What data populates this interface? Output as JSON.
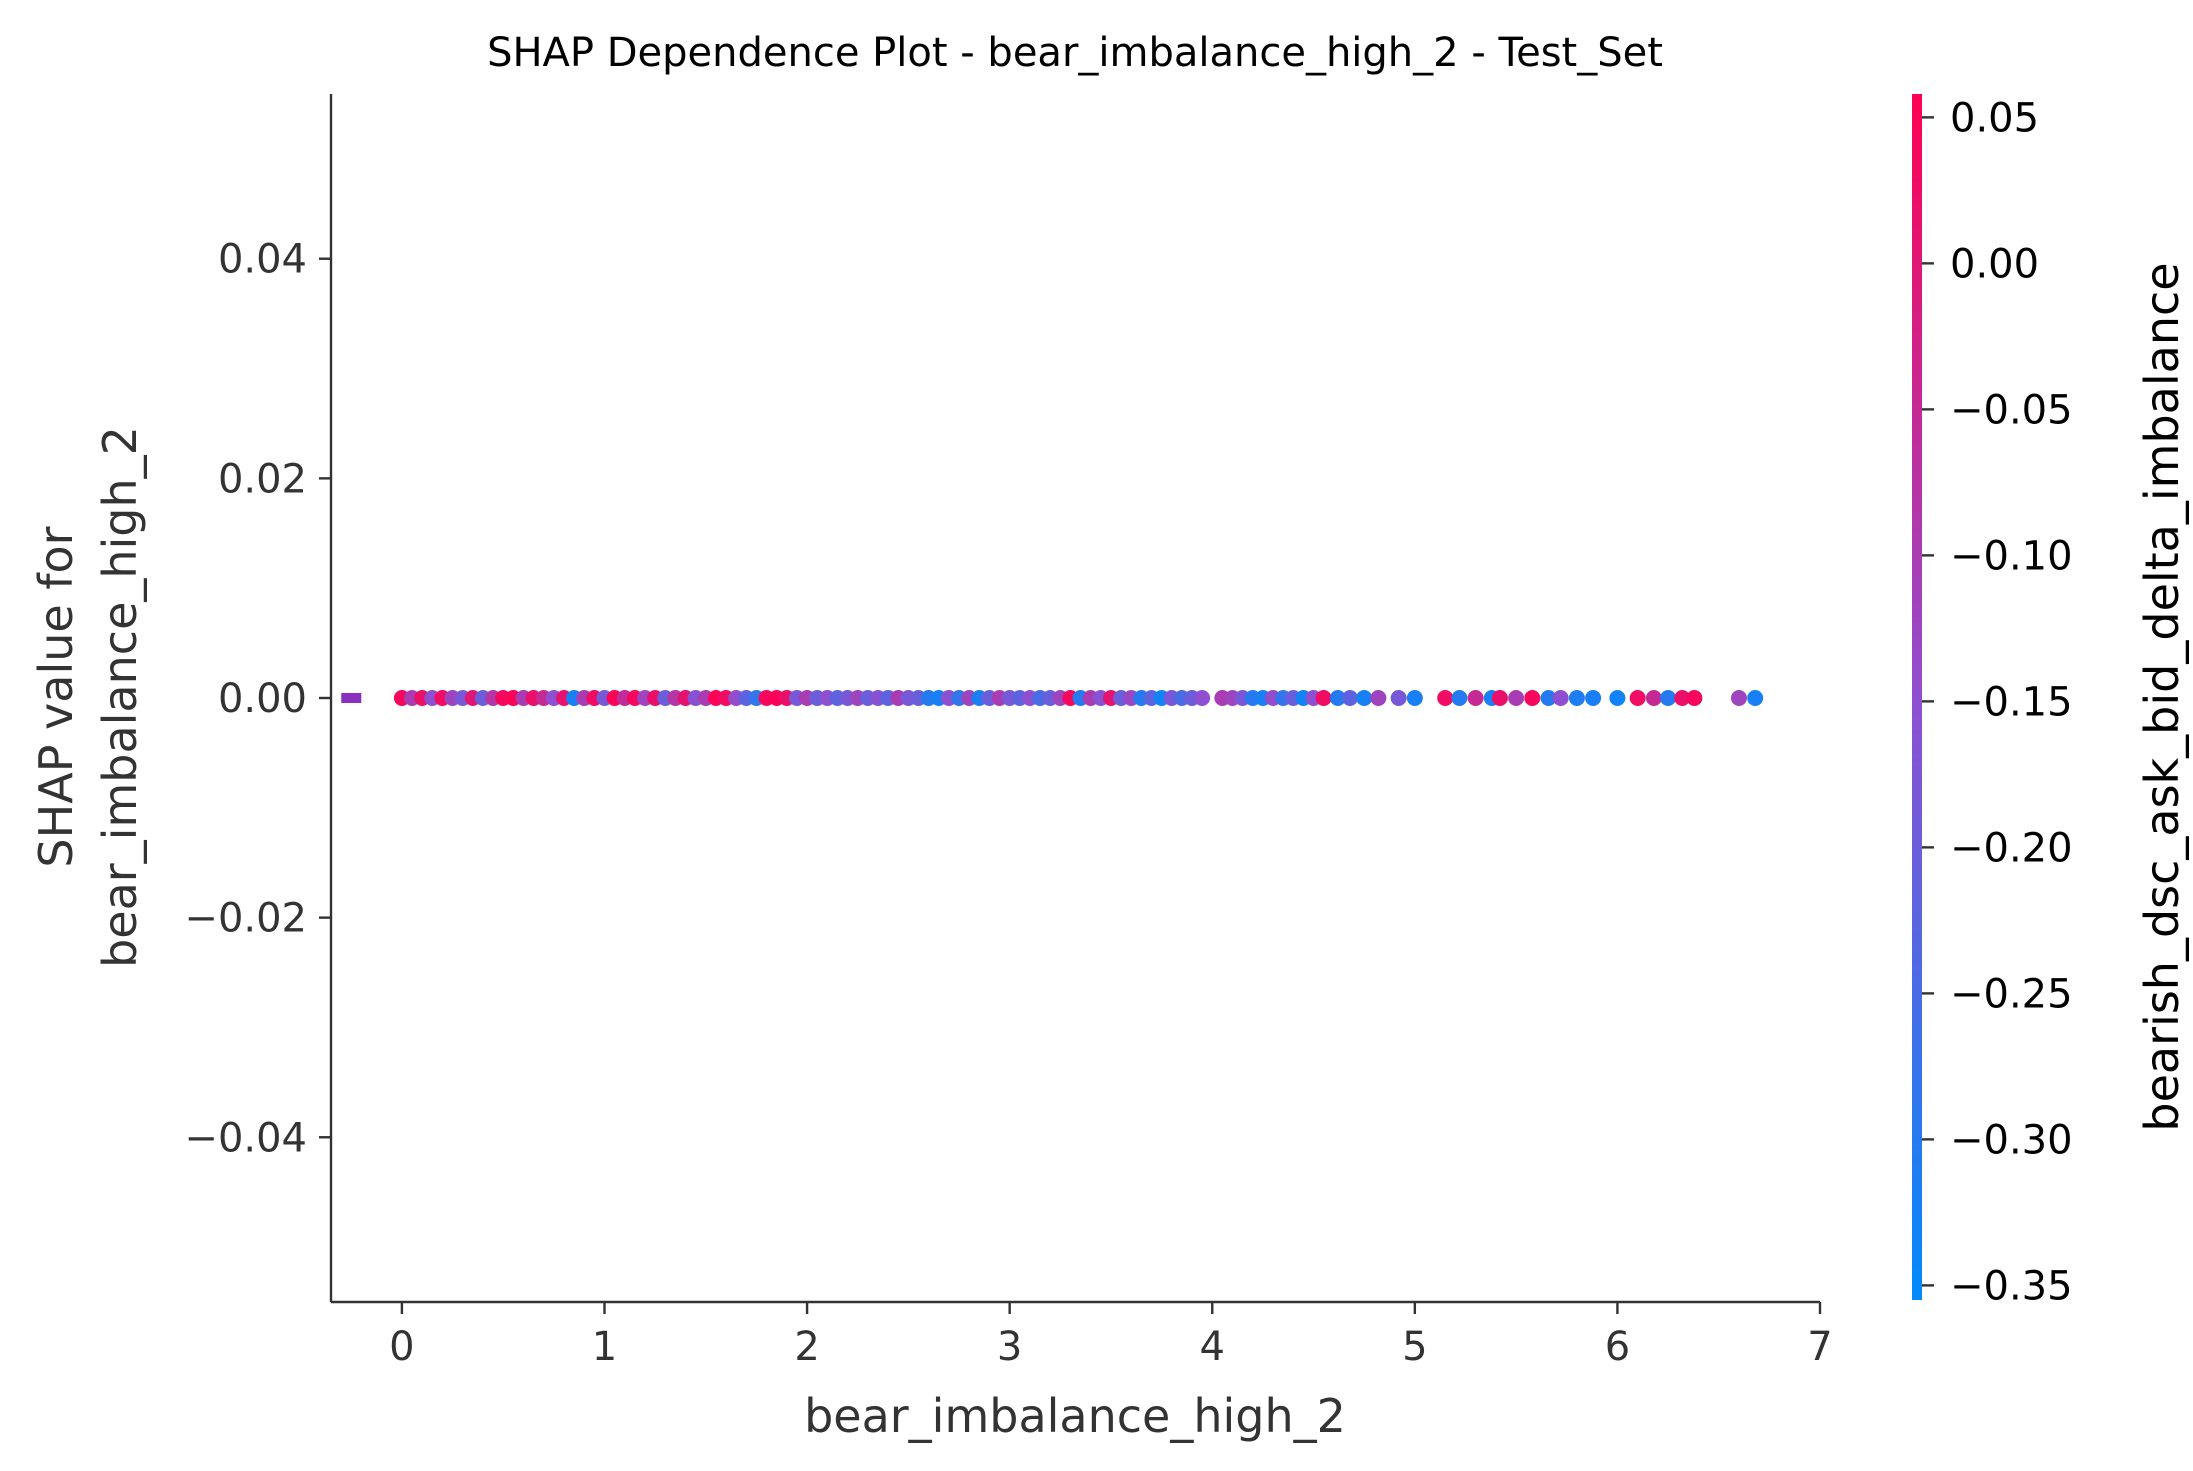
{
  "chart_data": {
    "type": "scatter",
    "title": "SHAP Dependence Plot - bear_imbalance_high_2 - Test_Set",
    "xlabel": "bear_imbalance_high_2",
    "ylabel_lines": [
      "SHAP value for",
      "bear_imbalance_high_2"
    ],
    "xlim": [
      -0.35,
      7.0
    ],
    "ylim": [
      -0.055,
      0.055
    ],
    "xticks": [
      0,
      1,
      2,
      3,
      4,
      5,
      6,
      7
    ],
    "xtick_labels": [
      "0",
      "1",
      "2",
      "3",
      "4",
      "5",
      "6",
      "7"
    ],
    "yticks": [
      0.04,
      0.02,
      0.0,
      -0.02,
      -0.04
    ],
    "ytick_labels": [
      "0.04",
      "0.02",
      "0.00",
      "−0.02",
      "−0.04"
    ],
    "colorbar": {
      "label": "bearish_dsc_ask_bid_delta_imbalance",
      "range": [
        -0.355,
        0.058
      ],
      "ticks": [
        0.05,
        0.0,
        -0.05,
        -0.1,
        -0.15,
        -0.2,
        -0.25,
        -0.3,
        -0.35
      ],
      "tick_labels": [
        "0.05",
        "0.00",
        "−0.05",
        "−0.10",
        "−0.15",
        "−0.20",
        "−0.25",
        "−0.30",
        "−0.35"
      ],
      "color_low": "#008afb",
      "color_mid": "#8f4fd0",
      "color_high": "#ff0052"
    },
    "nan_marker": {
      "x": -0.25,
      "y": 0.0,
      "color": "#8a30c0"
    },
    "points": [
      {
        "x": 0.0,
        "y": 0.0,
        "c": 0.04
      },
      {
        "x": 0.05,
        "y": 0.0,
        "c": -0.1
      },
      {
        "x": 0.1,
        "y": 0.0,
        "c": 0.02
      },
      {
        "x": 0.15,
        "y": 0.0,
        "c": -0.15
      },
      {
        "x": 0.2,
        "y": 0.0,
        "c": 0.03
      },
      {
        "x": 0.25,
        "y": 0.0,
        "c": -0.12
      },
      {
        "x": 0.3,
        "y": 0.0,
        "c": -0.18
      },
      {
        "x": 0.35,
        "y": 0.0,
        "c": 0.0
      },
      {
        "x": 0.4,
        "y": 0.0,
        "c": -0.2
      },
      {
        "x": 0.45,
        "y": 0.0,
        "c": -0.08
      },
      {
        "x": 0.5,
        "y": 0.0,
        "c": 0.04
      },
      {
        "x": 0.55,
        "y": 0.0,
        "c": 0.05
      },
      {
        "x": 0.6,
        "y": 0.0,
        "c": -0.1
      },
      {
        "x": 0.65,
        "y": 0.0,
        "c": 0.02
      },
      {
        "x": 0.7,
        "y": 0.0,
        "c": -0.05
      },
      {
        "x": 0.75,
        "y": 0.0,
        "c": -0.15
      },
      {
        "x": 0.8,
        "y": 0.0,
        "c": 0.01
      },
      {
        "x": 0.85,
        "y": 0.0,
        "c": -0.32
      },
      {
        "x": 0.9,
        "y": 0.0,
        "c": -0.1
      },
      {
        "x": 0.95,
        "y": 0.0,
        "c": 0.03
      },
      {
        "x": 1.0,
        "y": 0.0,
        "c": -0.18
      },
      {
        "x": 1.05,
        "y": 0.0,
        "c": 0.05
      },
      {
        "x": 1.1,
        "y": 0.0,
        "c": -0.06
      },
      {
        "x": 1.15,
        "y": 0.0,
        "c": 0.04
      },
      {
        "x": 1.2,
        "y": 0.0,
        "c": -0.12
      },
      {
        "x": 1.25,
        "y": 0.0,
        "c": 0.02
      },
      {
        "x": 1.3,
        "y": 0.0,
        "c": -0.2
      },
      {
        "x": 1.35,
        "y": 0.0,
        "c": -0.08
      },
      {
        "x": 1.4,
        "y": 0.0,
        "c": 0.01
      },
      {
        "x": 1.45,
        "y": 0.0,
        "c": -0.16
      },
      {
        "x": 1.5,
        "y": 0.0,
        "c": -0.1
      },
      {
        "x": 1.55,
        "y": 0.0,
        "c": 0.05
      },
      {
        "x": 1.6,
        "y": 0.0,
        "c": 0.03
      },
      {
        "x": 1.65,
        "y": 0.0,
        "c": -0.14
      },
      {
        "x": 1.7,
        "y": 0.0,
        "c": -0.22
      },
      {
        "x": 1.75,
        "y": 0.0,
        "c": -0.28
      },
      {
        "x": 1.8,
        "y": 0.0,
        "c": 0.04
      },
      {
        "x": 1.85,
        "y": 0.0,
        "c": 0.05
      },
      {
        "x": 1.9,
        "y": 0.0,
        "c": 0.02
      },
      {
        "x": 1.95,
        "y": 0.0,
        "c": -0.18
      },
      {
        "x": 2.0,
        "y": 0.0,
        "c": -0.1
      },
      {
        "x": 2.05,
        "y": 0.0,
        "c": -0.2
      },
      {
        "x": 2.1,
        "y": 0.0,
        "c": -0.15
      },
      {
        "x": 2.15,
        "y": 0.0,
        "c": -0.22
      },
      {
        "x": 2.2,
        "y": 0.0,
        "c": -0.18
      },
      {
        "x": 2.25,
        "y": 0.0,
        "c": -0.12
      },
      {
        "x": 2.3,
        "y": 0.0,
        "c": -0.2
      },
      {
        "x": 2.35,
        "y": 0.0,
        "c": -0.16
      },
      {
        "x": 2.4,
        "y": 0.0,
        "c": -0.22
      },
      {
        "x": 2.45,
        "y": 0.0,
        "c": -0.1
      },
      {
        "x": 2.5,
        "y": 0.0,
        "c": -0.18
      },
      {
        "x": 2.55,
        "y": 0.0,
        "c": -0.2
      },
      {
        "x": 2.6,
        "y": 0.0,
        "c": -0.3
      },
      {
        "x": 2.65,
        "y": 0.0,
        "c": -0.32
      },
      {
        "x": 2.7,
        "y": 0.0,
        "c": -0.15
      },
      {
        "x": 2.75,
        "y": 0.0,
        "c": -0.28
      },
      {
        "x": 2.8,
        "y": 0.0,
        "c": -0.12
      },
      {
        "x": 2.85,
        "y": 0.0,
        "c": -0.31
      },
      {
        "x": 2.9,
        "y": 0.0,
        "c": -0.2
      },
      {
        "x": 2.95,
        "y": 0.0,
        "c": -0.1
      },
      {
        "x": 3.0,
        "y": 0.0,
        "c": -0.18
      },
      {
        "x": 3.05,
        "y": 0.0,
        "c": -0.22
      },
      {
        "x": 3.1,
        "y": 0.0,
        "c": -0.15
      },
      {
        "x": 3.15,
        "y": 0.0,
        "c": -0.25
      },
      {
        "x": 3.2,
        "y": 0.0,
        "c": -0.2
      },
      {
        "x": 3.25,
        "y": 0.0,
        "c": -0.12
      },
      {
        "x": 3.3,
        "y": 0.0,
        "c": 0.04
      },
      {
        "x": 3.35,
        "y": 0.0,
        "c": -0.3
      },
      {
        "x": 3.4,
        "y": 0.0,
        "c": -0.1
      },
      {
        "x": 3.45,
        "y": 0.0,
        "c": -0.16
      },
      {
        "x": 3.5,
        "y": 0.0,
        "c": 0.01
      },
      {
        "x": 3.55,
        "y": 0.0,
        "c": -0.2
      },
      {
        "x": 3.6,
        "y": 0.0,
        "c": -0.13
      },
      {
        "x": 3.65,
        "y": 0.0,
        "c": -0.3
      },
      {
        "x": 3.7,
        "y": 0.0,
        "c": -0.22
      },
      {
        "x": 3.75,
        "y": 0.0,
        "c": -0.33
      },
      {
        "x": 3.8,
        "y": 0.0,
        "c": -0.18
      },
      {
        "x": 3.85,
        "y": 0.0,
        "c": -0.25
      },
      {
        "x": 3.9,
        "y": 0.0,
        "c": -0.2
      },
      {
        "x": 3.95,
        "y": 0.0,
        "c": -0.15
      },
      {
        "x": 4.05,
        "y": 0.0,
        "c": -0.1
      },
      {
        "x": 4.1,
        "y": 0.0,
        "c": -0.12
      },
      {
        "x": 4.15,
        "y": 0.0,
        "c": -0.18
      },
      {
        "x": 4.2,
        "y": 0.0,
        "c": -0.3
      },
      {
        "x": 4.25,
        "y": 0.0,
        "c": -0.32
      },
      {
        "x": 4.3,
        "y": 0.0,
        "c": -0.14
      },
      {
        "x": 4.35,
        "y": 0.0,
        "c": -0.28
      },
      {
        "x": 4.4,
        "y": 0.0,
        "c": -0.2
      },
      {
        "x": 4.45,
        "y": 0.0,
        "c": -0.33
      },
      {
        "x": 4.5,
        "y": 0.0,
        "c": -0.15
      },
      {
        "x": 4.55,
        "y": 0.0,
        "c": 0.03
      },
      {
        "x": 4.62,
        "y": 0.0,
        "c": -0.3
      },
      {
        "x": 4.68,
        "y": 0.0,
        "c": -0.22
      },
      {
        "x": 4.75,
        "y": 0.0,
        "c": -0.32
      },
      {
        "x": 4.82,
        "y": 0.0,
        "c": -0.12
      },
      {
        "x": 4.92,
        "y": 0.0,
        "c": -0.18
      },
      {
        "x": 5.0,
        "y": 0.0,
        "c": -0.32
      },
      {
        "x": 5.15,
        "y": 0.0,
        "c": 0.03
      },
      {
        "x": 5.22,
        "y": 0.0,
        "c": -0.3
      },
      {
        "x": 5.3,
        "y": 0.0,
        "c": -0.05
      },
      {
        "x": 5.38,
        "y": 0.0,
        "c": -0.32
      },
      {
        "x": 5.42,
        "y": 0.0,
        "c": 0.02
      },
      {
        "x": 5.5,
        "y": 0.0,
        "c": -0.1
      },
      {
        "x": 5.58,
        "y": 0.0,
        "c": 0.04
      },
      {
        "x": 5.66,
        "y": 0.0,
        "c": -0.3
      },
      {
        "x": 5.72,
        "y": 0.0,
        "c": -0.15
      },
      {
        "x": 5.8,
        "y": 0.0,
        "c": -0.31
      },
      {
        "x": 5.88,
        "y": 0.0,
        "c": -0.32
      },
      {
        "x": 6.0,
        "y": 0.0,
        "c": -0.33
      },
      {
        "x": 6.1,
        "y": 0.0,
        "c": 0.03
      },
      {
        "x": 6.18,
        "y": 0.0,
        "c": -0.05
      },
      {
        "x": 6.25,
        "y": 0.0,
        "c": -0.3
      },
      {
        "x": 6.32,
        "y": 0.0,
        "c": 0.02
      },
      {
        "x": 6.38,
        "y": 0.0,
        "c": 0.04
      },
      {
        "x": 6.6,
        "y": 0.0,
        "c": -0.12
      },
      {
        "x": 6.68,
        "y": 0.0,
        "c": -0.32
      }
    ]
  }
}
